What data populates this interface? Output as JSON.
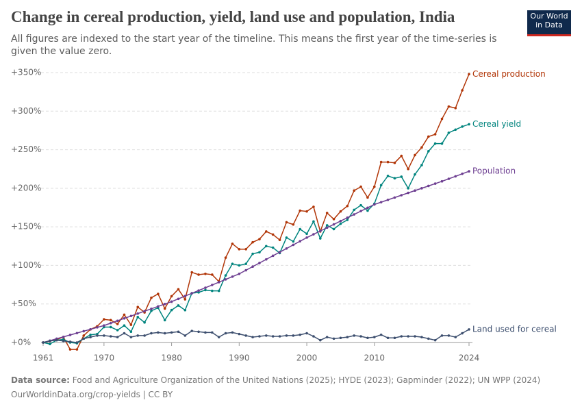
{
  "chart_data": {
    "type": "line",
    "title": "Change in cereal production, yield, land use and population, India",
    "subtitle": "All figures are indexed to the start year of the timeline. This means the first year of the time-series is given the value zero.",
    "source_label": "Data source:",
    "source": "Food and Agriculture Organization of the United Nations (2025); HYDE (2023); Gapminder (2022); UN WPP (2024)",
    "link": "OurWorldinData.org/crop-yields | CC BY",
    "logo": "Our World in Data",
    "x": [
      1961,
      1962,
      1963,
      1964,
      1965,
      1966,
      1967,
      1968,
      1969,
      1970,
      1971,
      1972,
      1973,
      1974,
      1975,
      1976,
      1977,
      1978,
      1979,
      1980,
      1981,
      1982,
      1983,
      1984,
      1985,
      1986,
      1987,
      1988,
      1989,
      1990,
      1991,
      1992,
      1993,
      1994,
      1995,
      1996,
      1997,
      1998,
      1999,
      2000,
      2001,
      2002,
      2003,
      2004,
      2005,
      2006,
      2007,
      2008,
      2009,
      2010,
      2011,
      2012,
      2013,
      2014,
      2015,
      2016,
      2017,
      2018,
      2019,
      2020,
      2021,
      2022,
      2023,
      2024
    ],
    "xlim": [
      1961,
      2024
    ],
    "xticks": [
      1961,
      1970,
      1980,
      1990,
      2000,
      2010,
      2024
    ],
    "ylim": [
      0,
      350
    ],
    "yticks": [
      {
        "value": 0,
        "label": "+0%"
      },
      {
        "value": 50,
        "label": "+50%"
      },
      {
        "value": 100,
        "label": "+100%"
      },
      {
        "value": 150,
        "label": "+150%"
      },
      {
        "value": 200,
        "label": "+200%"
      },
      {
        "value": 250,
        "label": "+250%"
      },
      {
        "value": 300,
        "label": "+300%"
      },
      {
        "value": 350,
        "label": "+350%"
      }
    ],
    "grid": true,
    "series": [
      {
        "name": "Cereal production",
        "color": "#b13507",
        "values": [
          0,
          2,
          4,
          7,
          -9,
          -9,
          9,
          17,
          21,
          30,
          29,
          24,
          36,
          23,
          46,
          39,
          58,
          63,
          44,
          60,
          69,
          56,
          91,
          88,
          89,
          88,
          79,
          110,
          128,
          121,
          121,
          130,
          134,
          144,
          140,
          133,
          156,
          153,
          171,
          170,
          176,
          144,
          168,
          160,
          170,
          177,
          197,
          202,
          188,
          202,
          234,
          234,
          233,
          242,
          225,
          243,
          253,
          267,
          270,
          290,
          306,
          304,
          327,
          348
        ]
      },
      {
        "name": "Cereal yield",
        "color": "#00847e",
        "values": [
          0,
          -2,
          3,
          4,
          0,
          -1,
          5,
          10,
          11,
          20,
          20,
          16,
          22,
          14,
          33,
          26,
          41,
          45,
          29,
          42,
          48,
          42,
          64,
          65,
          68,
          67,
          67,
          87,
          102,
          100,
          102,
          115,
          117,
          125,
          123,
          116,
          136,
          131,
          147,
          141,
          157,
          135,
          152,
          147,
          154,
          159,
          172,
          178,
          171,
          180,
          204,
          216,
          213,
          215,
          200,
          218,
          230,
          248,
          258,
          258,
          272,
          276,
          280,
          283
        ]
      },
      {
        "name": "Population",
        "color": "#6d3e91",
        "values": [
          0,
          2.4,
          4.9,
          7.3,
          9.8,
          12.2,
          14.7,
          17.1,
          19.6,
          22,
          25.1,
          28.2,
          31.3,
          34.4,
          37.5,
          40.6,
          43.7,
          46.8,
          49.9,
          53,
          56.6,
          60.2,
          63.8,
          67.4,
          71,
          74.6,
          78.2,
          81.8,
          85.4,
          89,
          93.7,
          98.4,
          103.1,
          107.8,
          112.5,
          117.2,
          121.9,
          126.6,
          131.3,
          136,
          140.3,
          144.6,
          148.9,
          153.2,
          157.5,
          161.8,
          166.1,
          170.4,
          174.7,
          179,
          182,
          185,
          188,
          191,
          194,
          197,
          200,
          203,
          206,
          209,
          212.3,
          215.5,
          218.8,
          222
        ]
      },
      {
        "name": "Land used for cereal",
        "color": "#3c4e6e",
        "values": [
          0,
          2,
          3,
          2,
          1,
          0,
          5,
          7,
          9,
          9,
          8,
          7,
          12,
          7,
          9,
          9,
          12,
          13,
          12,
          13,
          14,
          9,
          15,
          14,
          13,
          13,
          7,
          12,
          13,
          11,
          9,
          7,
          8,
          9,
          8,
          8,
          9,
          9,
          10,
          12,
          8,
          3,
          7,
          5,
          6,
          7,
          9,
          8,
          6,
          7,
          10,
          6,
          6,
          8,
          8,
          8,
          7,
          5,
          3,
          9,
          9,
          7,
          12,
          17
        ]
      }
    ]
  }
}
